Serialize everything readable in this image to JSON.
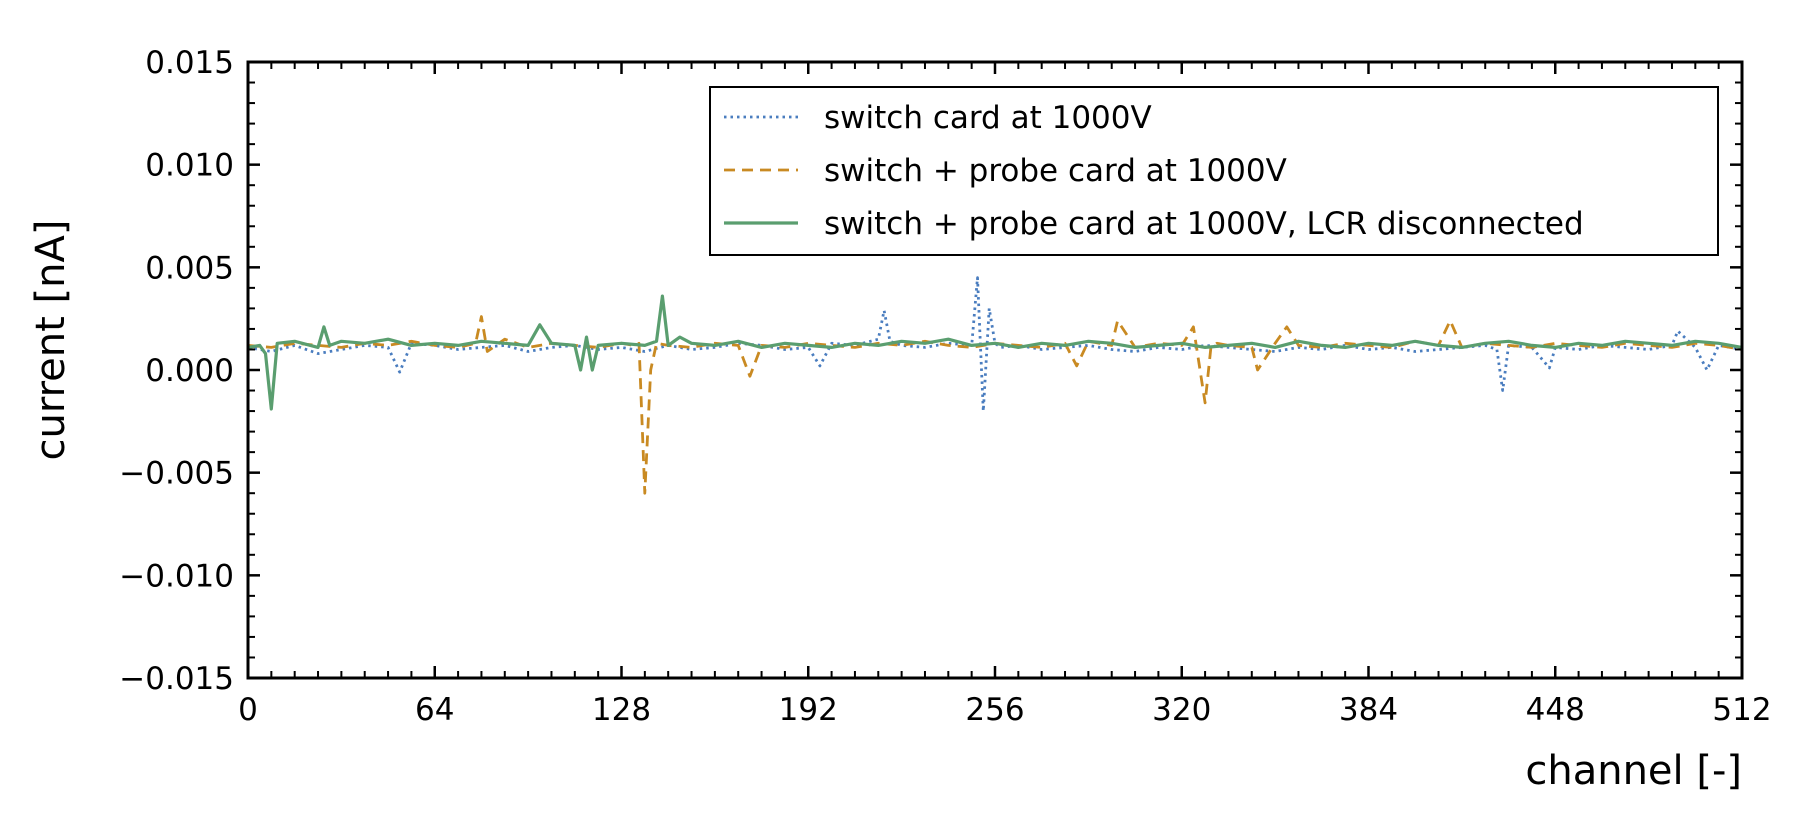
{
  "chart_data": {
    "type": "line",
    "title": "",
    "xlabel": "channel [-]",
    "ylabel": "current [nA]",
    "xlim": [
      0,
      512
    ],
    "ylim": [
      -0.015,
      0.015
    ],
    "x_ticks": [
      0,
      64,
      128,
      192,
      256,
      320,
      384,
      448,
      512
    ],
    "x_tick_labels": [
      "0",
      "64",
      "128",
      "192",
      "256",
      "320",
      "384",
      "448",
      "512"
    ],
    "y_ticks": [
      -0.015,
      -0.01,
      -0.005,
      0.0,
      0.005,
      0.01,
      0.015
    ],
    "y_tick_labels": [
      "−0.015",
      "−0.010",
      "−0.005",
      "0.000",
      "0.005",
      "0.010",
      "0.015"
    ],
    "grid": false,
    "legend_position": "top-right",
    "series": [
      {
        "name": "switch card at 1000V",
        "color": "#4a7dbf",
        "style": "dotted",
        "x": [
          0,
          8,
          16,
          24,
          32,
          40,
          48,
          52,
          56,
          64,
          72,
          80,
          88,
          96,
          104,
          112,
          120,
          128,
          136,
          144,
          152,
          160,
          168,
          176,
          184,
          192,
          196,
          200,
          208,
          216,
          218,
          220,
          224,
          232,
          240,
          248,
          250,
          252,
          254,
          256,
          258,
          264,
          272,
          280,
          288,
          296,
          304,
          312,
          320,
          328,
          336,
          344,
          352,
          360,
          368,
          376,
          384,
          392,
          400,
          408,
          416,
          424,
          428,
          430,
          432,
          440,
          446,
          448,
          456,
          464,
          472,
          480,
          488,
          490,
          496,
          500,
          504,
          508,
          512
        ],
        "y": [
          0.0011,
          0.0009,
          0.0012,
          0.0008,
          0.001,
          0.0012,
          0.0011,
          -0.0001,
          0.0013,
          0.0012,
          0.001,
          0.0011,
          0.0012,
          0.0009,
          0.0011,
          0.0012,
          0.001,
          0.0011,
          0.0009,
          0.0012,
          0.001,
          0.0011,
          0.0013,
          0.0012,
          0.001,
          0.0011,
          0.0002,
          0.0013,
          0.0012,
          0.0015,
          0.0029,
          0.0014,
          0.0012,
          0.0011,
          0.0013,
          0.0012,
          0.0045,
          -0.002,
          0.003,
          0.0013,
          0.0011,
          0.0012,
          0.001,
          0.0011,
          0.0012,
          0.001,
          0.0009,
          0.0011,
          0.001,
          0.0012,
          0.0011,
          0.001,
          0.0009,
          0.0011,
          0.001,
          0.0012,
          0.001,
          0.0011,
          0.0009,
          0.001,
          0.0011,
          0.0012,
          0.001,
          -0.001,
          0.0012,
          0.0011,
          0.0001,
          0.0011,
          0.001,
          0.0012,
          0.0011,
          0.001,
          0.0012,
          0.0019,
          0.0011,
          0.0,
          0.0012,
          0.0011,
          0.001
        ]
      },
      {
        "name": "switch + probe card at 1000V",
        "color": "#c98a22",
        "style": "dashed",
        "x": [
          0,
          8,
          16,
          24,
          32,
          40,
          48,
          56,
          64,
          72,
          78,
          80,
          82,
          88,
          96,
          104,
          112,
          120,
          128,
          132,
          134,
          136,
          138,
          140,
          144,
          152,
          160,
          168,
          172,
          176,
          184,
          192,
          200,
          208,
          216,
          224,
          232,
          240,
          248,
          256,
          264,
          272,
          280,
          284,
          288,
          296,
          298,
          304,
          312,
          320,
          324,
          328,
          330,
          332,
          336,
          344,
          346,
          352,
          356,
          360,
          368,
          376,
          384,
          392,
          400,
          408,
          412,
          416,
          424,
          432,
          440,
          448,
          456,
          464,
          472,
          480,
          488,
          496,
          504,
          512
        ],
        "y": [
          0.0012,
          0.0011,
          0.0013,
          0.0012,
          0.0011,
          0.0013,
          0.0012,
          0.0014,
          0.0012,
          0.0011,
          0.0013,
          0.0026,
          0.0009,
          0.0015,
          0.0011,
          0.0013,
          0.0012,
          0.0011,
          0.0013,
          0.0012,
          0.0013,
          -0.006,
          0.0,
          0.0013,
          0.0012,
          0.0011,
          0.0013,
          0.0012,
          -0.0003,
          0.0012,
          0.0011,
          0.0013,
          0.0012,
          0.0011,
          0.0013,
          0.0012,
          0.0014,
          0.0012,
          0.0011,
          0.0013,
          0.0012,
          0.0011,
          0.0013,
          0.0002,
          0.0014,
          0.0012,
          0.0024,
          0.0011,
          0.0013,
          0.0012,
          0.0021,
          -0.0016,
          0.0011,
          0.0013,
          0.0012,
          0.0011,
          0.0,
          0.0013,
          0.0021,
          0.0012,
          0.0011,
          0.0013,
          0.0012,
          0.0011,
          0.0014,
          0.0012,
          0.0024,
          0.0011,
          0.0013,
          0.0012,
          0.0011,
          0.0013,
          0.0012,
          0.0011,
          0.0013,
          0.0012,
          0.0011,
          0.0013,
          0.0012,
          0.001
        ]
      },
      {
        "name": "switch + probe card at 1000V, LCR disconnected",
        "color": "#5a9e6f",
        "style": "solid",
        "x": [
          0,
          4,
          6,
          8,
          10,
          16,
          24,
          26,
          28,
          32,
          40,
          48,
          56,
          64,
          72,
          80,
          88,
          96,
          100,
          104,
          112,
          114,
          116,
          118,
          120,
          128,
          136,
          140,
          142,
          144,
          148,
          152,
          160,
          168,
          176,
          184,
          192,
          200,
          208,
          216,
          224,
          232,
          240,
          248,
          256,
          264,
          272,
          280,
          288,
          296,
          304,
          312,
          320,
          328,
          336,
          344,
          352,
          360,
          368,
          376,
          384,
          392,
          400,
          408,
          416,
          424,
          432,
          440,
          448,
          456,
          464,
          472,
          480,
          488,
          496,
          504,
          512
        ],
        "y": [
          0.0011,
          0.0012,
          0.0008,
          -0.0019,
          0.0013,
          0.0014,
          0.0011,
          0.0021,
          0.0012,
          0.0014,
          0.0013,
          0.0015,
          0.0012,
          0.0013,
          0.0012,
          0.0014,
          0.0013,
          0.0012,
          0.0022,
          0.0013,
          0.0012,
          0.0,
          0.0016,
          0.0,
          0.0012,
          0.0013,
          0.0012,
          0.0014,
          0.0036,
          0.0012,
          0.0016,
          0.0013,
          0.0012,
          0.0014,
          0.0011,
          0.0013,
          0.0012,
          0.0011,
          0.0013,
          0.0012,
          0.0014,
          0.0013,
          0.0015,
          0.0012,
          0.0013,
          0.0011,
          0.0013,
          0.0012,
          0.0014,
          0.0013,
          0.0011,
          0.0012,
          0.0013,
          0.0011,
          0.0012,
          0.0013,
          0.0011,
          0.0014,
          0.0012,
          0.0011,
          0.0013,
          0.0012,
          0.0014,
          0.0012,
          0.0011,
          0.0013,
          0.0014,
          0.0012,
          0.0011,
          0.0013,
          0.0012,
          0.0014,
          0.0013,
          0.0012,
          0.0014,
          0.0013,
          0.0011
        ]
      }
    ]
  }
}
